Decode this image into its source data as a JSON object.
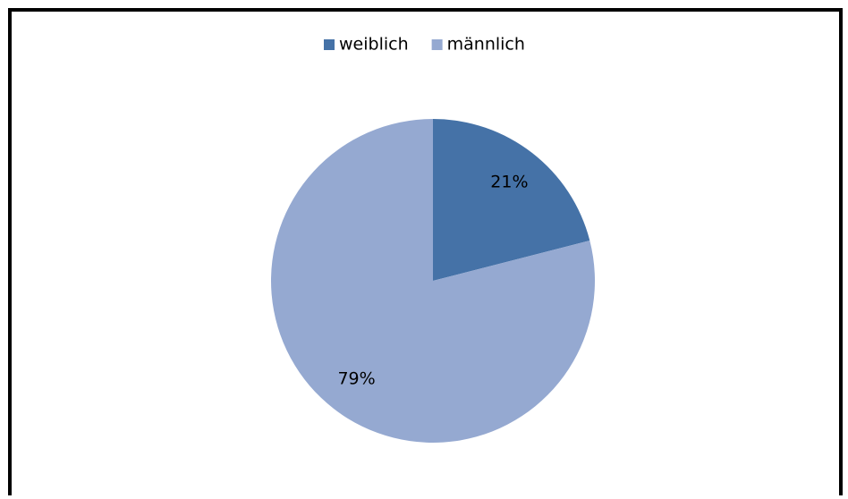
{
  "chart_data": {
    "type": "pie",
    "categories": [
      "weiblich",
      "männlich"
    ],
    "values": [
      21,
      79
    ],
    "value_labels": [
      "21%",
      "79%"
    ],
    "colors": [
      "#4572a7",
      "#95a9d1"
    ],
    "legend": "top"
  }
}
